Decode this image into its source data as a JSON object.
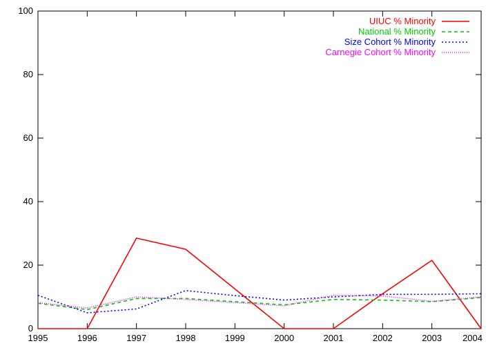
{
  "chart_data": {
    "type": "line",
    "title": "",
    "xlabel": "",
    "ylabel": "",
    "x": [
      1995,
      1996,
      1997,
      1998,
      1999,
      2000,
      2001,
      2002,
      2003,
      2004
    ],
    "xlim": [
      1995,
      2004
    ],
    "ylim": [
      0,
      100
    ],
    "xticks": [
      "1995",
      "1996",
      "1997",
      "1998",
      "1999",
      "2000",
      "2001",
      "2002",
      "2003",
      "2004"
    ],
    "yticks": [
      "0",
      "20",
      "40",
      "60",
      "80",
      "100"
    ],
    "grid": false,
    "legend_position": "top-right",
    "series": [
      {
        "name": "UIUC % Minority",
        "color": "#ff0000",
        "dash": "solid",
        "values": [
          0,
          0,
          28.5,
          25,
          12.5,
          0,
          0,
          11,
          21.5,
          0
        ]
      },
      {
        "name": "National % Minority",
        "color": "#00cc00",
        "dash": "dashed",
        "values": [
          8,
          6,
          9.5,
          9.5,
          8.5,
          7.5,
          9.2,
          9,
          8.5,
          9.8
        ]
      },
      {
        "name": "Size Cohort % Minority",
        "color": "#0000ff",
        "dash": "dotted",
        "values": [
          10.5,
          5,
          6.2,
          12,
          10.4,
          9,
          10,
          10.8,
          10.8,
          11
        ]
      },
      {
        "name": "Carnegie Cohort % Minority",
        "color": "#ff00ff",
        "dash": "fine-dotted",
        "values": [
          8.2,
          6.5,
          10,
          9.2,
          8.2,
          7.2,
          10.5,
          10.3,
          8.6,
          10
        ]
      }
    ]
  }
}
